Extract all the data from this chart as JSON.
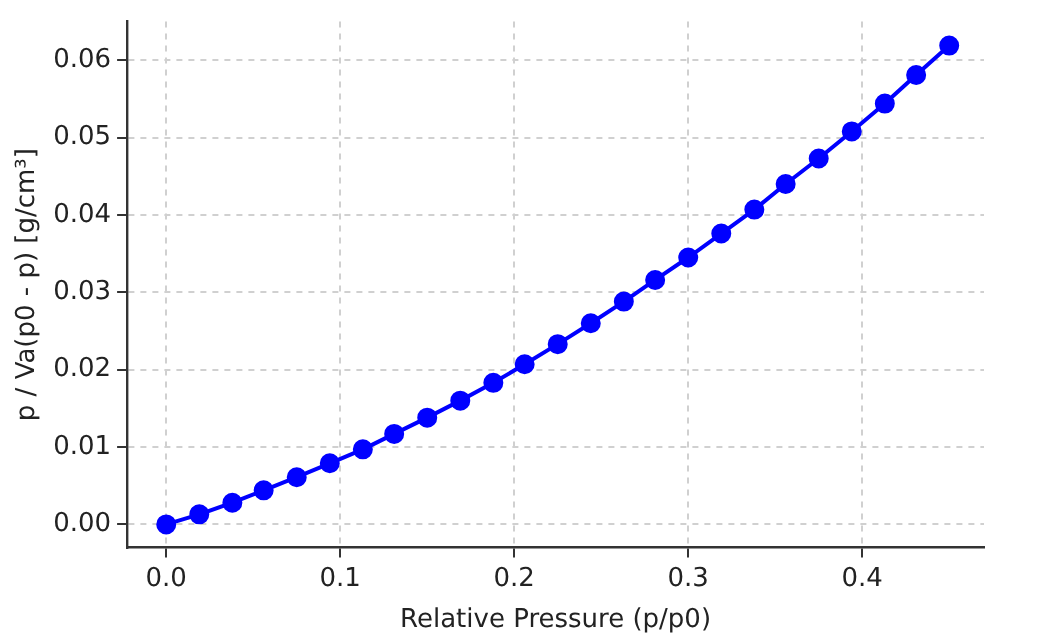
{
  "chart_data": {
    "type": "line",
    "xlabel": "Relative Pressure (p/p0)",
    "ylabel": "p / Va(p0 - p) [g/cm³]",
    "x": [
      0,
      0.019,
      0.038,
      0.056,
      0.075,
      0.094,
      0.113,
      0.131,
      0.15,
      0.169,
      0.188,
      0.206,
      0.225,
      0.244,
      0.263,
      0.281,
      0.3,
      0.319,
      0.338,
      0.356,
      0.375,
      0.394,
      0.413,
      0.431,
      0.45
    ],
    "series": [
      {
        "color": "#0000ff",
        "values": [
          0,
          0.0013,
          0.0028,
          0.0044,
          0.0061,
          0.0079,
          0.0097,
          0.0117,
          0.0138,
          0.016,
          0.0183,
          0.0207,
          0.0233,
          0.026,
          0.0288,
          0.0316,
          0.0345,
          0.0376,
          0.0407,
          0.044,
          0.0473,
          0.0508,
          0.0544,
          0.0581,
          0.0619
        ]
      }
    ],
    "xlim": [
      -0.0225,
      0.47
    ],
    "xticks": [
      {
        "value": 0,
        "label": "0.0"
      },
      {
        "value": 0.1,
        "label": "0.1"
      },
      {
        "value": 0.2,
        "label": "0.2"
      },
      {
        "value": 0.3,
        "label": "0.3"
      },
      {
        "value": 0.4,
        "label": "0.4"
      }
    ],
    "ylim": [
      -0.003,
      0.065
    ],
    "yticks": [
      {
        "value": 0,
        "label": "0.00"
      },
      {
        "value": 0.01,
        "label": "0.01"
      },
      {
        "value": 0.02,
        "label": "0.02"
      },
      {
        "value": 0.03,
        "label": "0.03"
      },
      {
        "value": 0.04,
        "label": "0.04"
      },
      {
        "value": 0.05,
        "label": "0.05"
      },
      {
        "value": 0.06,
        "label": "0.06"
      }
    ],
    "grid": true,
    "marker": "circle",
    "line_style": "solid"
  }
}
